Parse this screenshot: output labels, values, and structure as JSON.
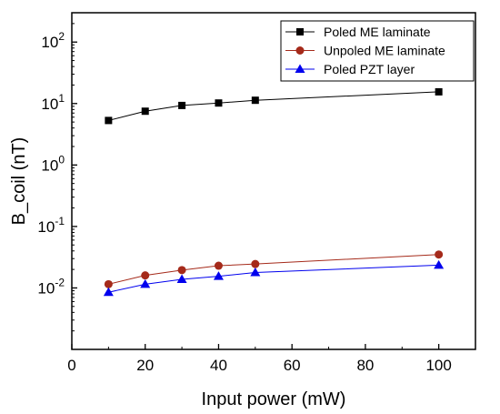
{
  "chart_data": {
    "type": "line",
    "xlabel": "Input power (mW)",
    "ylabel": "B_coil (nT)",
    "xlim": [
      0,
      110
    ],
    "ylim": [
      0.001,
      300
    ],
    "yscale": "log",
    "x_ticks": [
      "0",
      "20",
      "40",
      "60",
      "80",
      "100"
    ],
    "y_ticks": [
      {
        "value": 0.01,
        "base": "10",
        "exp": "-2"
      },
      {
        "value": 0.1,
        "base": "10",
        "exp": "-1"
      },
      {
        "value": 1,
        "base": "10",
        "exp": "0"
      },
      {
        "value": 10,
        "base": "10",
        "exp": "1"
      },
      {
        "value": 100,
        "base": "10",
        "exp": "2"
      }
    ],
    "grid": false,
    "legend_position": "top-right",
    "series": [
      {
        "name": "Poled ME laminate",
        "color": "#000000",
        "marker": "square",
        "x": [
          10,
          20,
          30,
          40,
          50,
          100
        ],
        "y": [
          5.3,
          7.5,
          9.3,
          10.2,
          11.3,
          15.5
        ]
      },
      {
        "name": "Unpoled ME laminate",
        "color": "#a52a1a",
        "marker": "circle",
        "x": [
          10,
          20,
          30,
          40,
          50,
          100
        ],
        "y": [
          0.0115,
          0.016,
          0.0195,
          0.023,
          0.0245,
          0.035
        ]
      },
      {
        "name": "Poled PZT layer",
        "color": "#0000ee",
        "marker": "triangle",
        "x": [
          10,
          20,
          30,
          40,
          50,
          100
        ],
        "y": [
          0.0085,
          0.0115,
          0.0138,
          0.0155,
          0.0178,
          0.0235
        ]
      }
    ]
  }
}
